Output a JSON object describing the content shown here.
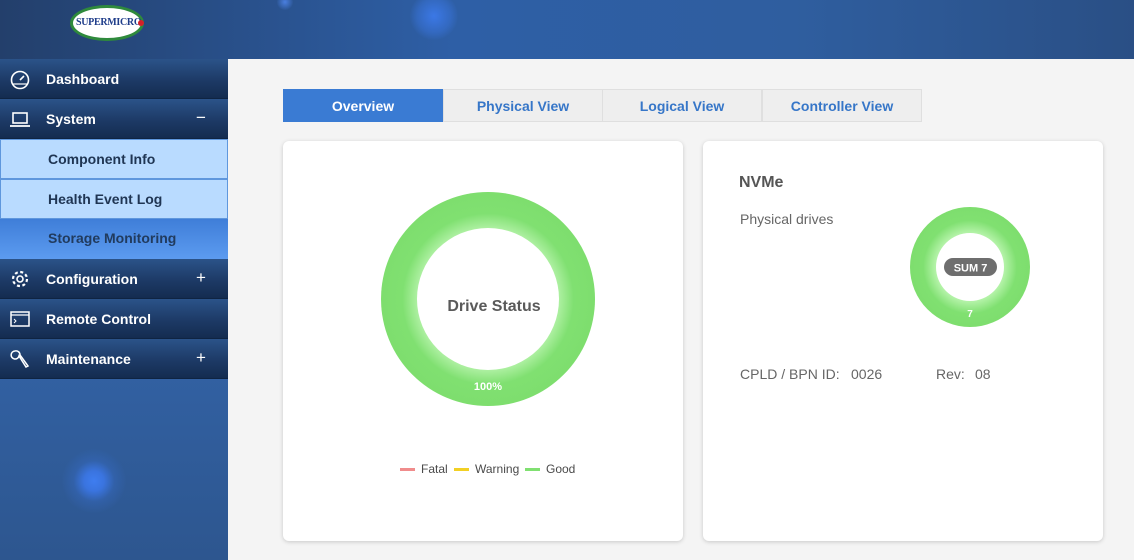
{
  "header": {
    "logo_text": "SUPERMICRO"
  },
  "sidebar": {
    "items": [
      {
        "label": "Dashboard",
        "icon": "gauge-icon",
        "toggle": ""
      },
      {
        "label": "System",
        "icon": "laptop-icon",
        "toggle": "−"
      },
      {
        "label": "Configuration",
        "icon": "gear-icon",
        "toggle": "+"
      },
      {
        "label": "Remote Control",
        "icon": "console-icon",
        "toggle": ""
      },
      {
        "label": "Maintenance",
        "icon": "wrench-icon",
        "toggle": "+"
      }
    ],
    "system_subitems": [
      {
        "label": "Component Info",
        "active": false
      },
      {
        "label": "Health Event Log",
        "active": false
      },
      {
        "label": "Storage Monitoring",
        "active": true
      }
    ]
  },
  "tabs": [
    {
      "label": "Overview",
      "active": true
    },
    {
      "label": "Physical View",
      "active": false
    },
    {
      "label": "Logical View",
      "active": false
    },
    {
      "label": "Controller View",
      "active": false
    }
  ],
  "drive_status": {
    "title": "Drive Status",
    "percent_label": "100%",
    "good_fraction": 1.0,
    "legend": [
      {
        "label": "Fatal",
        "color": "#f08c8c"
      },
      {
        "label": "Warning",
        "color": "#f2d024"
      },
      {
        "label": "Good",
        "color": "#80e071"
      }
    ]
  },
  "nvme": {
    "title": "NVMe",
    "physical_drives_label": "Physical drives",
    "sum_label": "SUM 7",
    "count_label": "7",
    "cpld_label": "CPLD / BPN ID:",
    "cpld_value": "0026",
    "rev_label": "Rev:",
    "rev_value": "08"
  },
  "colors": {
    "good": "#80e071",
    "accent": "#3a7bd3",
    "tab_text": "#3676c8"
  }
}
